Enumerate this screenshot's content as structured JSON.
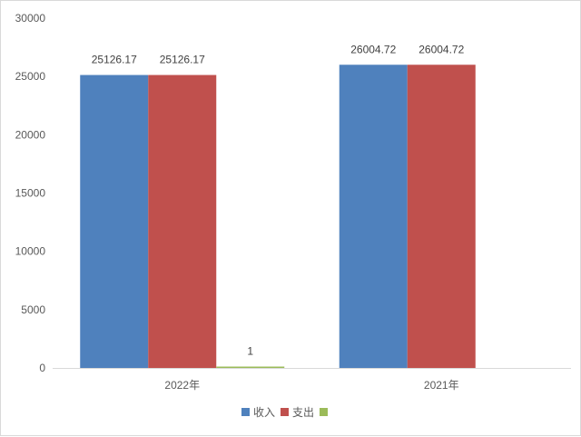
{
  "chart_data": {
    "type": "bar",
    "categories": [
      "2022年",
      "2021年"
    ],
    "series": [
      {
        "name": "收入",
        "color": "#4f81bd",
        "values": [
          25126.17,
          26004.72
        ],
        "labels": [
          "25126.17",
          "26004.72"
        ]
      },
      {
        "name": "支出",
        "color": "#c0504d",
        "values": [
          25126.17,
          26004.72
        ],
        "labels": [
          "25126.17",
          "26004.72"
        ]
      },
      {
        "name": "",
        "color": "#9bbb59",
        "values": [
          1,
          null
        ],
        "labels": [
          "1",
          ""
        ]
      }
    ],
    "y_ticks": [
      "0",
      "5000",
      "10000",
      "15000",
      "20000",
      "25000",
      "30000"
    ],
    "ylim": [
      0,
      30000
    ],
    "grid": false,
    "legend_position": "bottom"
  }
}
